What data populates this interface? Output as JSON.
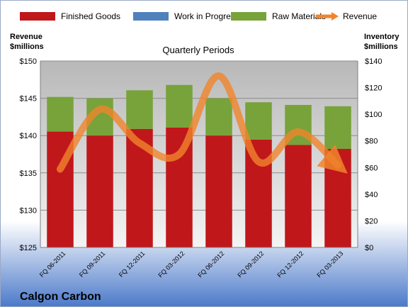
{
  "chart_data": {
    "type": "bar",
    "subtitle": "Quarterly Periods",
    "company": "Calgon Carbon",
    "left_axis_title": [
      "Revenue",
      "$millions"
    ],
    "right_axis_title": [
      "Inventory",
      "$millions"
    ],
    "categories": [
      "FQ 06-2011",
      "FQ 09-2011",
      "FQ 12-2011",
      "FQ 03-2012",
      "FQ 06-2012",
      "FQ 09-2012",
      "FQ 12-2012",
      "FQ 03-2013"
    ],
    "left_ylim": [
      125,
      150
    ],
    "left_ticks": [
      125,
      130,
      135,
      140,
      145,
      150
    ],
    "left_tick_format": "$",
    "right_ylim": [
      0,
      140
    ],
    "right_ticks": [
      0,
      20,
      40,
      60,
      80,
      100,
      120,
      140
    ],
    "right_tick_format": "$",
    "legend_position": "top",
    "gridlines": true,
    "series": [
      {
        "name": "Finished Goods",
        "color": "#c0171b",
        "axis": "right",
        "values": [
          87,
          84,
          89,
          90,
          84,
          81,
          77,
          74
        ]
      },
      {
        "name": "Work in Progress",
        "color": "#4f81bd",
        "axis": "right",
        "values": [
          0,
          0,
          0,
          0,
          0,
          0,
          0,
          0
        ]
      },
      {
        "name": "Raw Materials",
        "color": "#77a33a",
        "axis": "right",
        "values": [
          26,
          28,
          29,
          32,
          28,
          28,
          30,
          32
        ]
      },
      {
        "name": "Revenue",
        "color": "#f0842c",
        "axis": "left",
        "type": "line",
        "values": [
          135.5,
          143.5,
          139.0,
          137.5,
          148.0,
          136.5,
          140.5,
          136.0
        ]
      }
    ]
  }
}
